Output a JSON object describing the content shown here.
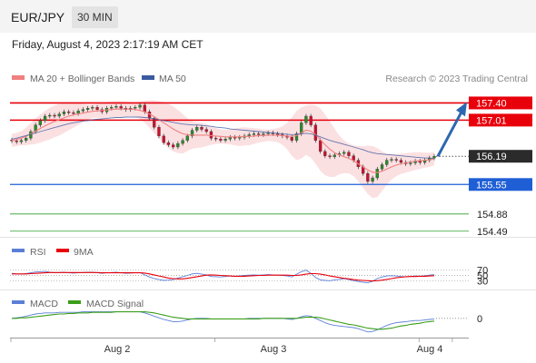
{
  "header": {
    "pair": "EUR/JPY",
    "timeframe": "30 MIN",
    "datetime": "Friday, August 4, 2023 2:17:19 AM CET"
  },
  "legend": {
    "bollinger_label": "MA 20 + Bollinger Bands",
    "ma50_label": "MA 50",
    "credit": "Research © 2023 Trading Central"
  },
  "colors": {
    "bollinger": "#f08080",
    "band_fill": "#fadadd",
    "ma50": "#3b5ba0",
    "resistance": "#e8000b",
    "support": "#1f5fd6",
    "target": "#2e9e2e",
    "arrow": "#2d67b0",
    "candle_up": "#2a8a2a",
    "candle_down": "#c8102e",
    "rsi": "#5b7fd6",
    "rsi_ma": "#e8000b",
    "macd": "#5b7fd6",
    "macd_signal": "#3a9e1a"
  },
  "chart_data": [
    {
      "type": "candlestick",
      "title": "",
      "ylim": [
        154.3,
        157.8
      ],
      "x_ticks": [
        "Aug 2",
        "Aug 3",
        "Aug 4"
      ],
      "price_levels": [
        {
          "value": 157.4,
          "label": "157.40",
          "kind": "resistance"
        },
        {
          "value": 157.01,
          "label": "157.01",
          "kind": "resistance"
        },
        {
          "value": 156.19,
          "label": "156.19",
          "kind": "current"
        },
        {
          "value": 155.55,
          "label": "155.55",
          "kind": "support"
        },
        {
          "value": 154.88,
          "label": "154.88",
          "kind": "target"
        },
        {
          "value": 154.49,
          "label": "154.49",
          "kind": "target"
        }
      ],
      "close": [
        156.54,
        156.52,
        156.55,
        156.6,
        156.75,
        156.9,
        157.0,
        157.1,
        157.12,
        157.1,
        157.15,
        157.2,
        157.18,
        157.16,
        157.22,
        157.25,
        157.28,
        157.3,
        157.25,
        157.2,
        157.28,
        157.3,
        157.32,
        157.28,
        157.25,
        157.28,
        157.3,
        157.35,
        157.2,
        157.05,
        156.85,
        156.65,
        156.5,
        156.45,
        156.4,
        156.48,
        156.55,
        156.65,
        156.78,
        156.85,
        156.8,
        156.75,
        156.6,
        156.58,
        156.55,
        156.58,
        156.62,
        156.6,
        156.62,
        156.65,
        156.68,
        156.7,
        156.68,
        156.7,
        156.72,
        156.7,
        156.68,
        156.65,
        156.62,
        156.55,
        156.7,
        156.95,
        157.1,
        156.9,
        156.55,
        156.3,
        156.2,
        156.18,
        156.22,
        156.25,
        156.28,
        156.2,
        156.1,
        155.95,
        155.8,
        155.62,
        155.7,
        155.9,
        156.0,
        156.1,
        156.12,
        156.1,
        156.05,
        156.02,
        156.04,
        156.08,
        156.05,
        156.1,
        156.15,
        156.19
      ],
      "bollinger": {
        "middle": [
          156.55,
          156.57,
          156.6,
          156.64,
          156.7,
          156.76,
          156.82,
          156.88,
          156.93,
          156.98,
          157.02,
          157.06,
          157.1,
          157.13,
          157.15,
          157.17,
          157.19,
          157.21,
          157.22,
          157.23,
          157.24,
          157.25,
          157.26,
          157.26,
          157.26,
          157.26,
          157.25,
          157.23,
          157.2,
          157.15,
          157.09,
          157.02,
          156.95,
          156.88,
          156.81,
          156.75,
          156.7,
          156.68,
          156.67,
          156.67,
          156.67,
          156.67,
          156.66,
          156.65,
          156.64,
          156.63,
          156.63,
          156.63,
          156.63,
          156.64,
          156.64,
          156.65,
          156.66,
          156.66,
          156.67,
          156.67,
          156.67,
          156.66,
          156.65,
          156.64,
          156.66,
          156.72,
          156.78,
          156.76,
          156.68,
          156.57,
          156.45,
          156.35,
          156.27,
          156.22,
          156.18,
          156.14,
          156.09,
          156.02,
          155.95,
          155.88,
          155.83,
          155.82,
          155.85,
          155.9,
          155.95,
          155.99,
          156.02,
          156.04,
          156.06,
          156.08,
          156.09,
          156.1,
          156.11,
          156.13
        ],
        "upper": [
          156.7,
          156.72,
          156.76,
          156.84,
          156.94,
          157.05,
          157.14,
          157.22,
          157.29,
          157.34,
          157.38,
          157.4,
          157.42,
          157.42,
          157.4,
          157.38,
          157.36,
          157.36,
          157.38,
          157.4,
          157.42,
          157.43,
          157.44,
          157.44,
          157.43,
          157.42,
          157.41,
          157.43,
          157.45,
          157.46,
          157.46,
          157.44,
          157.42,
          157.38,
          157.32,
          157.24,
          157.15,
          157.05,
          156.98,
          156.96,
          156.95,
          156.92,
          156.87,
          156.83,
          156.8,
          156.79,
          156.8,
          156.82,
          156.84,
          156.85,
          156.84,
          156.83,
          156.82,
          156.8,
          156.8,
          156.81,
          156.83,
          156.87,
          156.95,
          157.08,
          157.22,
          157.3,
          157.34,
          157.36,
          157.34,
          157.28,
          157.14,
          156.98,
          156.82,
          156.66,
          156.55,
          156.48,
          156.44,
          156.42,
          156.42,
          156.43,
          156.42,
          156.38,
          156.3,
          156.25,
          156.24,
          156.24,
          156.25,
          156.26,
          156.27,
          156.28,
          156.28,
          156.27,
          156.27,
          156.28
        ],
        "lower": [
          156.4,
          156.42,
          156.44,
          156.44,
          156.46,
          156.47,
          156.5,
          156.54,
          156.57,
          156.62,
          156.66,
          156.72,
          156.78,
          156.84,
          156.9,
          156.96,
          157.02,
          157.06,
          157.06,
          157.06,
          157.06,
          157.07,
          157.08,
          157.08,
          157.09,
          157.1,
          157.09,
          157.03,
          156.95,
          156.84,
          156.72,
          156.6,
          156.48,
          156.38,
          156.3,
          156.26,
          156.25,
          156.31,
          156.36,
          156.38,
          156.39,
          156.42,
          156.45,
          156.47,
          156.48,
          156.47,
          156.46,
          156.44,
          156.42,
          156.43,
          156.44,
          156.47,
          156.5,
          156.52,
          156.54,
          156.53,
          156.51,
          156.45,
          156.35,
          156.2,
          156.1,
          156.14,
          156.22,
          156.16,
          156.02,
          155.86,
          155.76,
          155.72,
          155.72,
          155.78,
          155.81,
          155.8,
          155.74,
          155.62,
          155.48,
          155.33,
          155.24,
          155.26,
          155.4,
          155.55,
          155.66,
          155.74,
          155.79,
          155.82,
          155.85,
          155.88,
          155.9,
          155.93,
          155.95,
          155.98
        ]
      },
      "ma50": [
        156.58,
        156.6,
        156.63,
        156.66,
        156.69,
        156.72,
        156.75,
        156.78,
        156.81,
        156.84,
        156.87,
        156.9,
        156.93,
        156.95,
        156.97,
        156.99,
        157.0,
        157.02,
        157.03,
        157.04,
        157.05,
        157.06,
        157.07,
        157.07,
        157.08,
        157.08,
        157.08,
        157.08,
        157.07,
        157.06,
        157.04,
        157.02,
        157.0,
        156.98,
        156.96,
        156.94,
        156.92,
        156.91,
        156.9,
        156.9,
        156.89,
        156.88,
        156.87,
        156.85,
        156.84,
        156.83,
        156.81,
        156.8,
        156.79,
        156.78,
        156.77,
        156.76,
        156.75,
        156.74,
        156.73,
        156.72,
        156.71,
        156.7,
        156.69,
        156.68,
        156.69,
        156.7,
        156.71,
        156.7,
        156.67,
        156.63,
        156.59,
        156.55,
        156.52,
        156.49,
        156.46,
        156.43,
        156.4,
        156.37,
        156.34,
        156.3,
        156.27,
        156.25,
        156.24,
        156.23,
        156.22,
        156.21,
        156.2,
        156.19,
        156.18,
        156.17,
        156.16,
        156.15,
        156.15,
        156.14
      ]
    },
    {
      "type": "line",
      "title": "",
      "series": [
        {
          "name": "RSI"
        },
        {
          "name": "9MA"
        }
      ],
      "levels": [
        70,
        50,
        30
      ],
      "ylim": [
        0,
        100
      ],
      "rsi": [
        58,
        56,
        55,
        57,
        60,
        63,
        64,
        65,
        62,
        60,
        61,
        62,
        60,
        59,
        60,
        61,
        62,
        62,
        60,
        58,
        60,
        61,
        62,
        60,
        58,
        59,
        60,
        61,
        52,
        44,
        38,
        34,
        31,
        32,
        34,
        40,
        45,
        50,
        56,
        58,
        55,
        52,
        46,
        45,
        44,
        46,
        48,
        47,
        48,
        50,
        51,
        52,
        51,
        52,
        53,
        52,
        51,
        50,
        48,
        44,
        55,
        64,
        70,
        58,
        42,
        33,
        31,
        30,
        33,
        35,
        38,
        34,
        30,
        27,
        24,
        22,
        28,
        38,
        44,
        48,
        49,
        48,
        46,
        45,
        46,
        48,
        47,
        49,
        51,
        53
      ],
      "rsi_ma": [
        56,
        56,
        56,
        56,
        57,
        58,
        59,
        60,
        61,
        61,
        61,
        61,
        61,
        61,
        61,
        61,
        61,
        61,
        61,
        60,
        60,
        60,
        60,
        60,
        60,
        60,
        60,
        60,
        59,
        56,
        52,
        48,
        44,
        40,
        38,
        37,
        37,
        39,
        42,
        45,
        48,
        51,
        52,
        51,
        50,
        49,
        48,
        47,
        47,
        47,
        48,
        49,
        50,
        50,
        51,
        51,
        51,
        51,
        51,
        50,
        50,
        52,
        55,
        57,
        57,
        55,
        52,
        48,
        45,
        42,
        39,
        37,
        34,
        32,
        31,
        30,
        29,
        30,
        32,
        35,
        38,
        41,
        43,
        45,
        46,
        46,
        47,
        47,
        48,
        49
      ]
    },
    {
      "type": "line",
      "title": "",
      "series": [
        {
          "name": "MACD"
        },
        {
          "name": "MACD Signal"
        }
      ],
      "zero_label": "0",
      "ylim": [
        -0.32,
        0.18
      ],
      "macd": [
        0.0,
        0.01,
        0.02,
        0.04,
        0.06,
        0.08,
        0.09,
        0.1,
        0.1,
        0.1,
        0.11,
        0.11,
        0.11,
        0.11,
        0.11,
        0.12,
        0.12,
        0.12,
        0.12,
        0.12,
        0.12,
        0.12,
        0.12,
        0.12,
        0.12,
        0.12,
        0.12,
        0.12,
        0.1,
        0.07,
        0.04,
        0.01,
        -0.02,
        -0.04,
        -0.06,
        -0.06,
        -0.05,
        -0.03,
        -0.01,
        0.0,
        0.0,
        0.0,
        -0.01,
        -0.01,
        -0.01,
        -0.01,
        -0.01,
        -0.01,
        -0.01,
        -0.01,
        0.0,
        0.0,
        0.0,
        0.0,
        0.0,
        0.0,
        0.0,
        0.0,
        -0.01,
        -0.02,
        0.0,
        0.03,
        0.05,
        0.04,
        0.0,
        -0.04,
        -0.08,
        -0.11,
        -0.13,
        -0.14,
        -0.15,
        -0.16,
        -0.17,
        -0.19,
        -0.22,
        -0.25,
        -0.24,
        -0.21,
        -0.17,
        -0.13,
        -0.1,
        -0.08,
        -0.07,
        -0.06,
        -0.05,
        -0.04,
        -0.04,
        -0.03,
        -0.02,
        -0.01
      ],
      "signal": [
        0.0,
        0.0,
        0.01,
        0.01,
        0.02,
        0.03,
        0.04,
        0.05,
        0.06,
        0.07,
        0.08,
        0.08,
        0.09,
        0.09,
        0.1,
        0.1,
        0.1,
        0.11,
        0.11,
        0.11,
        0.11,
        0.11,
        0.12,
        0.12,
        0.12,
        0.12,
        0.12,
        0.12,
        0.12,
        0.11,
        0.1,
        0.08,
        0.06,
        0.04,
        0.02,
        0.01,
        0.0,
        -0.01,
        -0.01,
        -0.01,
        -0.01,
        -0.01,
        -0.01,
        -0.01,
        -0.01,
        -0.01,
        -0.01,
        -0.01,
        -0.01,
        -0.01,
        -0.01,
        -0.01,
        -0.01,
        0.0,
        0.0,
        0.0,
        0.0,
        0.0,
        0.0,
        0.0,
        0.0,
        0.01,
        0.02,
        0.02,
        0.02,
        0.01,
        -0.01,
        -0.03,
        -0.05,
        -0.07,
        -0.09,
        -0.11,
        -0.12,
        -0.14,
        -0.16,
        -0.18,
        -0.19,
        -0.2,
        -0.2,
        -0.19,
        -0.18,
        -0.16,
        -0.14,
        -0.13,
        -0.11,
        -0.1,
        -0.09,
        -0.07,
        -0.06,
        -0.05
      ]
    }
  ]
}
